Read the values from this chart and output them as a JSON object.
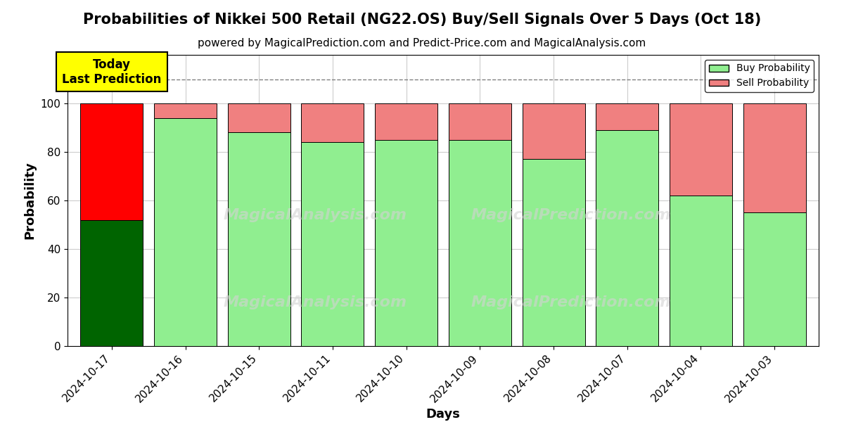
{
  "title": "Probabilities of Nikkei 500 Retail (NG22.OS) Buy/Sell Signals Over 5 Days (Oct 18)",
  "subtitle": "powered by MagicalPrediction.com and Predict-Price.com and MagicalAnalysis.com",
  "xlabel": "Days",
  "ylabel": "Probability",
  "dates": [
    "2024-10-17",
    "2024-10-16",
    "2024-10-15",
    "2024-10-11",
    "2024-10-10",
    "2024-10-09",
    "2024-10-08",
    "2024-10-07",
    "2024-10-04",
    "2024-10-03"
  ],
  "buy_values": [
    52,
    94,
    88,
    84,
    85,
    85,
    77,
    89,
    62,
    55
  ],
  "sell_values": [
    48,
    6,
    12,
    16,
    15,
    15,
    23,
    11,
    38,
    45
  ],
  "buy_colors_bar": [
    "#006400",
    "#90EE90",
    "#90EE90",
    "#90EE90",
    "#90EE90",
    "#90EE90",
    "#90EE90",
    "#90EE90",
    "#90EE90",
    "#90EE90"
  ],
  "sell_colors_bar": [
    "#FF0000",
    "#F08080",
    "#F08080",
    "#F08080",
    "#F08080",
    "#F08080",
    "#F08080",
    "#F08080",
    "#F08080",
    "#F08080"
  ],
  "legend_buy_color": "#90EE90",
  "legend_sell_color": "#F08080",
  "today_box_color": "#FFFF00",
  "today_text": "Today\nLast Prediction",
  "dashed_line_y": 110,
  "ylim": [
    0,
    120
  ],
  "yticks": [
    0,
    20,
    40,
    60,
    80,
    100
  ],
  "bar_width": 0.85,
  "background_color": "#ffffff",
  "grid_color": "#cccccc",
  "title_fontsize": 15,
  "subtitle_fontsize": 11,
  "axis_label_fontsize": 13,
  "tick_fontsize": 11
}
